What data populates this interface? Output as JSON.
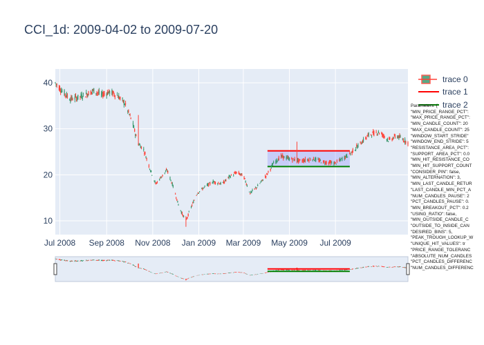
{
  "title": "CCI_1d: 2009-04-02 to 2009-07-20",
  "colors": {
    "increasing": "#3d9970",
    "decreasing": "#ff4136",
    "resistance": "#ff0000",
    "support": "#008000",
    "zone_fill": "rgba(110,110,255,0.25)",
    "plot_bg": "#e5ecf6"
  },
  "legend": [
    "trace 0",
    "trace 1",
    "trace 2"
  ],
  "params_title": "Parameters: {",
  "params": [
    "\"MIN_PRICE_RANGE_PCT\":",
    "\"MAX_PRICE_RANGE_PCT\":",
    "\"MIN_CANDLE_COUNT\": 20",
    "\"MAX_CANDLE_COUNT\": 25",
    "\"WINDOW_START_STRIDE\"",
    "\"WINDOW_END_STRIDE\": 5",
    "\"RESISTANCE_AREA_PCT\":",
    "\"SUPPORT_AREA_PCT\": 0.0",
    "\"MIN_HIT_RESISTANCE_CO",
    "\"MIN_HIT_SUPPORT_COUNT",
    "\"CONSIDER_PIN\": false,",
    "\"MIN_ALTERNATION\": 3,",
    "\"MIN_LAST_CANDLE_RETUR",
    "\"LAST_CANDLE_MIN_PCT_A",
    "\"NUM_CANDLES_PAUSE\": 2",
    "\"PCT_CANDLES_PAUSE\": 0.",
    "\"MIN_BREAKOUT_PCT\": 0.2",
    "\"USING_RATIO\": false,",
    "\"MIN_OUTSIDE_CANDLE_C",
    "\"OUTSIDE_TO_INSIDE_CAN",
    "\"DESIRED_BINS\": 5,",
    "\"PEAK_TROUGH_LOOKUP_W",
    "\"UNIQUE_HIT_VALUES\": tr",
    "\"PRICE_RANGE_TOLERANC",
    "\"ABSOLUTE_NUM_CANDLES",
    "\"PCT_CANDLES_DIFFERENC",
    "\"NUM_CANDLES_DIFFERENC"
  ],
  "chart_data": {
    "type": "candlestick",
    "x_range": [
      "2008-06-25",
      "2009-10-05"
    ],
    "y_range": [
      7,
      43
    ],
    "x_ticks": [
      "Jul 2008",
      "Sep 2008",
      "Nov 2008",
      "Jan 2009",
      "Mar 2009",
      "May 2009",
      "Jul 2009"
    ],
    "x_tick_dates": [
      "2008-07-01",
      "2008-09-01",
      "2008-11-01",
      "2009-01-01",
      "2009-03-01",
      "2009-05-01",
      "2009-07-01"
    ],
    "y_ticks": [
      10,
      20,
      30,
      40
    ],
    "rangeslider": true,
    "close_path": [
      [
        "2008-06-25",
        40.0
      ],
      [
        "2008-07-05",
        38.0
      ],
      [
        "2008-07-15",
        36.5
      ],
      [
        "2008-07-25",
        36.8
      ],
      [
        "2008-08-05",
        37.5
      ],
      [
        "2008-08-15",
        38.3
      ],
      [
        "2008-08-25",
        37.4
      ],
      [
        "2008-09-05",
        38.0
      ],
      [
        "2008-09-15",
        37.3
      ],
      [
        "2008-09-25",
        35.5
      ],
      [
        "2008-10-05",
        31.5
      ],
      [
        "2008-10-12",
        27.0
      ],
      [
        "2008-10-20",
        25.5
      ],
      [
        "2008-10-28",
        21.5
      ],
      [
        "2008-11-05",
        18.0
      ],
      [
        "2008-11-12",
        19.5
      ],
      [
        "2008-11-20",
        21.0
      ],
      [
        "2008-11-28",
        17.5
      ],
      [
        "2008-12-05",
        13.5
      ],
      [
        "2008-12-10",
        11.5
      ],
      [
        "2008-12-15",
        10.0
      ],
      [
        "2008-12-22",
        13.0
      ],
      [
        "2008-12-30",
        16.0
      ],
      [
        "2009-01-10",
        17.5
      ],
      [
        "2009-01-20",
        18.5
      ],
      [
        "2009-02-01",
        18.0
      ],
      [
        "2009-02-10",
        19.5
      ],
      [
        "2009-02-20",
        20.5
      ],
      [
        "2009-03-01",
        19.8
      ],
      [
        "2009-03-10",
        16.0
      ],
      [
        "2009-03-20",
        17.5
      ],
      [
        "2009-04-01",
        20.0
      ],
      [
        "2009-04-10",
        22.5
      ],
      [
        "2009-04-20",
        24.0
      ],
      [
        "2009-05-01",
        23.5
      ],
      [
        "2009-05-15",
        23.0
      ],
      [
        "2009-06-01",
        23.5
      ],
      [
        "2009-06-15",
        22.8
      ],
      [
        "2009-07-01",
        22.5
      ],
      [
        "2009-07-10",
        23.5
      ],
      [
        "2009-07-20",
        24.5
      ],
      [
        "2009-08-01",
        26.5
      ],
      [
        "2009-08-15",
        28.8
      ],
      [
        "2009-08-28",
        29.3
      ],
      [
        "2009-09-10",
        27.5
      ],
      [
        "2009-09-20",
        28.5
      ],
      [
        "2009-10-05",
        27.0
      ]
    ],
    "spikes": [
      [
        "2008-10-12",
        27.5,
        33.0
      ],
      [
        "2008-12-15",
        8.7,
        11.0
      ],
      [
        "2009-05-10",
        22.5,
        27.2
      ]
    ],
    "zone": {
      "x0": "2009-04-02",
      "x1": "2009-07-20",
      "resistance": 25.2,
      "support": 21.8,
      "series": [
        {
          "name": "trace 1",
          "value": 25.2,
          "color": "#ff0000"
        },
        {
          "name": "trace 2",
          "value": 21.8,
          "color": "#008000"
        }
      ]
    }
  }
}
